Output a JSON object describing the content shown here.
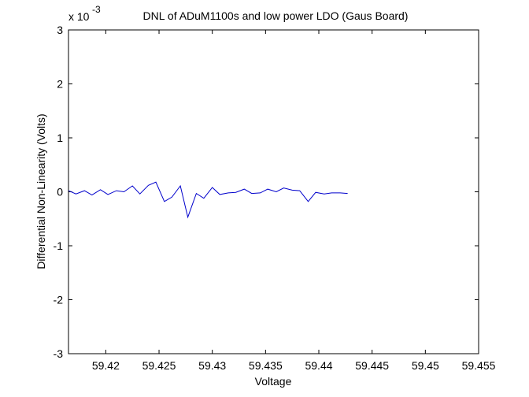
{
  "chart_data": {
    "type": "line",
    "title": "DNL of ADuM1100s and low power LDO (Gaus Board)",
    "xlabel": "Voltage",
    "ylabel": "Differential Non-Linearity (Volts)",
    "y_exponent_label": "x 10",
    "y_exponent_power": "-3",
    "xlim": [
      59.4165,
      59.455
    ],
    "ylim": [
      -3,
      3
    ],
    "x_ticks": [
      59.42,
      59.425,
      59.43,
      59.435,
      59.44,
      59.445,
      59.45,
      59.455
    ],
    "x_tick_labels": [
      "59.42",
      "59.425",
      "59.43",
      "59.435",
      "59.44",
      "59.445",
      "59.45",
      "59.455"
    ],
    "y_ticks": [
      -3,
      -2,
      -1,
      0,
      1,
      2,
      3
    ],
    "y_tick_labels": [
      "-3",
      "-2",
      "-1",
      "0",
      "1",
      "2",
      "3"
    ],
    "grid": false,
    "line_color": "#0000cc",
    "series": [
      {
        "x": [
          59.4165,
          59.4172,
          59.418,
          59.4187,
          59.4195,
          59.4202,
          59.421,
          59.4217,
          59.4225,
          59.4232,
          59.424,
          59.4247,
          59.4255,
          59.4262,
          59.427,
          59.4277,
          59.4285,
          59.4292,
          59.43,
          59.4307,
          59.4315,
          59.4322,
          59.433,
          59.4337,
          59.4345,
          59.4352,
          59.436,
          59.4367,
          59.4375,
          59.4382,
          59.439,
          59.4397,
          59.4405,
          59.4412,
          59.442,
          59.4427
        ],
        "values": [
          0.02,
          -0.04,
          0.02,
          -0.06,
          0.04,
          -0.05,
          0.02,
          0.0,
          0.11,
          -0.04,
          0.12,
          0.18,
          -0.18,
          -0.1,
          0.11,
          -0.47,
          -0.03,
          -0.12,
          0.08,
          -0.05,
          -0.02,
          -0.01,
          0.05,
          -0.03,
          -0.02,
          0.05,
          0.0,
          0.07,
          0.03,
          0.02,
          -0.18,
          -0.01,
          -0.04,
          -0.02,
          -0.02,
          -0.03
        ]
      }
    ]
  }
}
